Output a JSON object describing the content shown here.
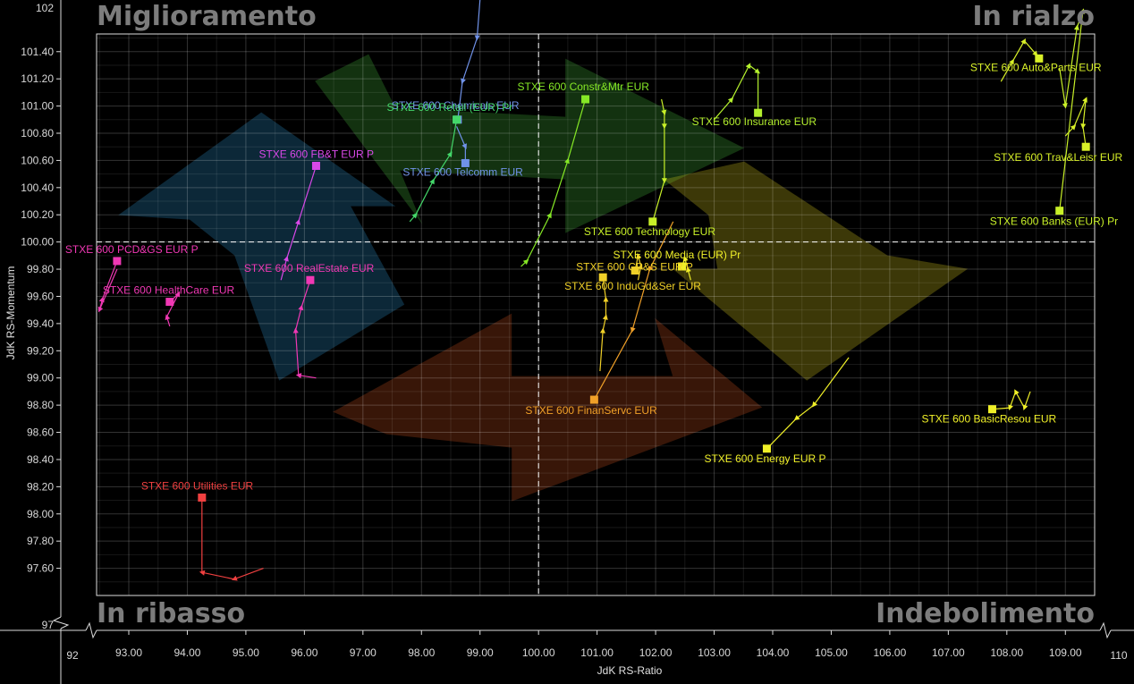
{
  "quadrants": {
    "top_left": "Miglioramento",
    "top_right": "In rialzo",
    "bottom_left": "In ribasso",
    "bottom_right": "Indebolimento"
  },
  "chart_data": {
    "type": "scatter",
    "subtype": "relative-rotation-graph",
    "xlabel": "JdK RS-Ratio",
    "ylabel": "JdK RS-Momentum",
    "xlim": [
      92,
      110
    ],
    "ylim": [
      97,
      102
    ],
    "x_ticks": [
      "93.00",
      "94.00",
      "95.00",
      "96.00",
      "97.00",
      "98.00",
      "99.00",
      "100.00",
      "101.00",
      "102.00",
      "103.00",
      "104.00",
      "105.00",
      "106.00",
      "107.00",
      "108.00",
      "109.00"
    ],
    "y_ticks": [
      "97.60",
      "97.80",
      "98.00",
      "98.20",
      "98.40",
      "98.60",
      "98.80",
      "99.00",
      "99.20",
      "99.40",
      "99.60",
      "99.80",
      "100.00",
      "100.20",
      "100.40",
      "100.60",
      "100.80",
      "101.00",
      "101.20",
      "101.40"
    ],
    "x_extremes": [
      "92",
      "110"
    ],
    "y_extremes": [
      "97",
      "102"
    ],
    "center": [
      100,
      100
    ],
    "grid": true,
    "quadrant_colors": {
      "improving": "#2a90c8",
      "leading": "#46b43a",
      "weakening": "#d8c81e",
      "lagging": "#c84e1e"
    },
    "series": [
      {
        "name": "STXE 600 Constr&Mtr EUR",
        "color": "#86e826",
        "x": [
          99.7,
          99.8,
          100.2,
          100.5,
          100.8
        ],
        "y": [
          99.82,
          99.86,
          100.2,
          100.6,
          101.05
        ]
      },
      {
        "name": "STXE 600 Chemicals EUR",
        "color": "#7092e8",
        "x": [
          99.0,
          98.95,
          98.7,
          98.62
        ],
        "y": [
          101.78,
          101.5,
          101.18,
          100.9
        ]
      },
      {
        "name": "STXE 600 Telcomm EUR",
        "color": "#7092e8",
        "x": [
          98.6,
          98.75,
          98.75
        ],
        "y": [
          100.85,
          100.7,
          100.58
        ]
      },
      {
        "name": "STXE 600 FB&T EUR P",
        "color": "#d848e8",
        "x": [
          95.6,
          95.7,
          95.9,
          96.2
        ],
        "y": [
          99.72,
          99.88,
          100.15,
          100.56
        ]
      },
      {
        "name": "STXE 600 RealEstate EUR",
        "color": "#f038b4",
        "x": [
          96.2,
          95.9,
          95.85,
          95.95,
          96.1
        ],
        "y": [
          99.0,
          99.02,
          99.35,
          99.52,
          99.72
        ]
      },
      {
        "name": "STXE 600 PCD&GS EUR P",
        "color": "#f038b4",
        "x": [
          92.8,
          92.5,
          92.55,
          92.8
        ],
        "y": [
          99.8,
          99.5,
          99.58,
          99.86
        ]
      },
      {
        "name": "STXE 600 HealthCare EUR",
        "color": "#f038b4",
        "x": [
          93.7,
          93.65,
          93.85,
          93.7
        ],
        "y": [
          99.38,
          99.45,
          99.62,
          99.56
        ]
      },
      {
        "name": "STXE 600 Utilities EUR",
        "color": "#f04040",
        "x": [
          95.3,
          94.8,
          94.25,
          94.25
        ],
        "y": [
          97.6,
          97.52,
          97.57,
          98.12
        ]
      },
      {
        "name": "STXE 600 Retail (EUR) Pr",
        "color": "#44d86a",
        "x": [
          97.8,
          97.9,
          98.2,
          98.5,
          98.6
        ],
        "y": [
          100.15,
          100.2,
          100.45,
          100.65,
          100.9
        ]
      },
      {
        "name": "STXE 600 Insurance EUR",
        "color": "#b4f02e",
        "x": [
          103.0,
          103.3,
          103.6,
          103.75,
          103.75
        ],
        "y": [
          100.9,
          101.05,
          101.3,
          101.25,
          100.95
        ]
      },
      {
        "name": "STXE 600 Auto&Parts EUR",
        "color": "#d8f028",
        "x": [
          107.9,
          108.1,
          108.3,
          108.5,
          108.55
        ],
        "y": [
          101.18,
          101.33,
          101.48,
          101.38,
          101.35
        ]
      },
      {
        "name": "STXE 600 Trav&Leisr EUR",
        "color": "#d8f028",
        "x": [
          109.0,
          109.15,
          109.35,
          109.3,
          109.35
        ],
        "y": [
          100.78,
          100.85,
          101.05,
          100.85,
          100.7
        ]
      },
      {
        "name": "STXE 600 Banks (EUR) Pr",
        "color": "#c8f028",
        "x": [
          108.9,
          109.0,
          109.2,
          109.3,
          108.9
        ],
        "y": [
          101.28,
          101.0,
          101.58,
          101.7,
          100.23
        ]
      },
      {
        "name": "STXE 600 Technology EUR",
        "color": "#c8f028",
        "x": [
          102.1,
          102.15,
          102.15,
          102.15,
          101.95
        ],
        "y": [
          101.05,
          100.95,
          100.85,
          100.45,
          100.15
        ]
      },
      {
        "name": "STXE 600 Media (EUR) Pr",
        "color": "#f0f028",
        "x": [
          102.6,
          102.55,
          102.5,
          102.45
        ],
        "y": [
          99.72,
          99.8,
          99.88,
          99.82
        ]
      },
      {
        "name": "STXE 600 CP&S EUR P",
        "color": "#f0d028",
        "x": [
          101.7,
          101.75,
          101.7,
          101.65
        ],
        "y": [
          99.72,
          99.82,
          99.9,
          99.79
        ]
      },
      {
        "name": "STXE 600 InduGd&Ser EUR",
        "color": "#f0d028",
        "x": [
          101.05,
          101.1,
          101.15,
          101.15,
          101.1
        ],
        "y": [
          99.05,
          99.35,
          99.45,
          99.58,
          99.74
        ]
      },
      {
        "name": "STXE 600 FinanServc EUR",
        "color": "#f0a028",
        "x": [
          102.3,
          101.9,
          101.6,
          100.95
        ],
        "y": [
          100.15,
          99.8,
          99.35,
          98.84
        ]
      },
      {
        "name": "STXE 600 Energy EUR P",
        "color": "#f0f028",
        "x": [
          105.3,
          104.7,
          104.4,
          103.9
        ],
        "y": [
          99.15,
          98.8,
          98.7,
          98.48
        ]
      },
      {
        "name": "STXE 600 BasicResou EUR",
        "color": "#f0f028",
        "x": [
          108.4,
          108.3,
          108.15,
          108.05,
          107.75
        ],
        "y": [
          98.9,
          98.78,
          98.9,
          98.78,
          98.77
        ]
      }
    ]
  }
}
